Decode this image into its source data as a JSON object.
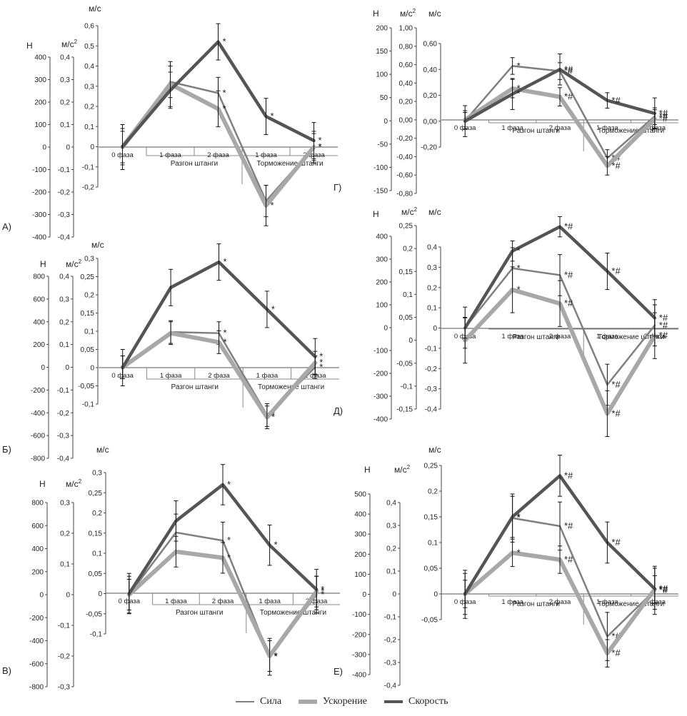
{
  "legend": [
    {
      "name": "Сила",
      "color": "#7f7f7f",
      "width": 2.5
    },
    {
      "name": "Ускорение",
      "color": "#a8a8a8",
      "width": 6
    },
    {
      "name": "Скорость",
      "color": "#555555",
      "width": 4.5
    }
  ],
  "chart_data": [
    {
      "type": "line",
      "label": "А)",
      "categories": [
        "0 фаза",
        "1 фаза",
        "2 фаза",
        "1 фаза",
        "2 фаза"
      ],
      "category_groups": [
        "Разгон штанги",
        "Торможение штанги"
      ],
      "axes": {
        "N": {
          "unit": "Н",
          "ticks": [
            "400",
            "300",
            "200",
            "100",
            "0",
            "-100",
            "-200",
            "-300",
            "-400"
          ]
        },
        "a": {
          "unit": "м/с2",
          "ticks": [
            "0,4",
            "0,3",
            "0,2",
            "0,1",
            "0",
            "-0,1",
            "-0,2",
            "-0,3",
            "-0,4"
          ]
        },
        "v": {
          "unit": "м/с",
          "ticks": [
            "0,6",
            "0,5",
            "0,4",
            "0,3",
            "0,2",
            "0,1",
            "0",
            "-0,1",
            "-0,2"
          ]
        }
      },
      "series": [
        {
          "name": "Сила",
          "axis": "N",
          "values": [
            0,
            290,
            240,
            -240,
            0
          ],
          "errors": [
            70,
            70,
            70,
            70,
            70
          ],
          "marks": [
            "",
            "",
            "*",
            "*",
            "*"
          ]
        },
        {
          "name": "Ускорение",
          "axis": "a",
          "values": [
            0,
            0.28,
            0.17,
            -0.26,
            0
          ],
          "errors": [
            0.1,
            0.1,
            0.08,
            0.09,
            0.06
          ],
          "marks": [
            "",
            "",
            "*",
            "*",
            "*"
          ]
        },
        {
          "name": "Скорость",
          "axis": "v",
          "values": [
            0,
            0.28,
            0.52,
            0.15,
            0.03
          ],
          "errors": [
            0.09,
            0.09,
            0.09,
            0.09,
            0.09
          ],
          "marks": [
            "",
            "",
            "*",
            "*",
            "*"
          ]
        }
      ]
    },
    {
      "type": "line",
      "label": "Б)",
      "categories": [
        "0 фаза",
        "1 фаза",
        "2 фаза",
        "1 фаза",
        "2 фаза"
      ],
      "category_groups": [
        "Разгон штанги",
        "Торможение штанги"
      ],
      "axes": {
        "N": {
          "unit": "Н",
          "ticks": [
            "800",
            "600",
            "400",
            "200",
            "0",
            "-200",
            "-400",
            "-600",
            "-800"
          ]
        },
        "a": {
          "unit": "м/с2",
          "ticks": [
            "0,4",
            "0,3",
            "0,2",
            "0,1",
            "0",
            "-0,1",
            "-0,2",
            "-0,3",
            "-0,4"
          ]
        },
        "v": {
          "unit": "м/с",
          "ticks": [
            "0,3",
            "0,25",
            "0,2",
            "0,15",
            "0,1",
            "0,05",
            "0",
            "-0,05",
            "-0,1"
          ]
        }
      },
      "series": [
        {
          "name": "Сила",
          "axis": "N",
          "values": [
            0,
            310,
            300,
            -420,
            0
          ],
          "errors": [
            100,
            100,
            100,
            100,
            100
          ],
          "marks": [
            "",
            "",
            "*",
            "*",
            "*"
          ]
        },
        {
          "name": "Ускорение",
          "axis": "a",
          "values": [
            0,
            0.15,
            0.11,
            -0.22,
            0.02
          ],
          "errors": [
            0.05,
            0.05,
            0.05,
            0.05,
            0.05
          ],
          "marks": [
            "",
            "",
            "*",
            "*",
            "*"
          ]
        },
        {
          "name": "Скорость",
          "axis": "v",
          "values": [
            0,
            0.22,
            0.29,
            0.16,
            0.03
          ],
          "errors": [
            0.05,
            0.05,
            0.05,
            0.05,
            0.05
          ],
          "marks": [
            "",
            "",
            "*",
            "*",
            "*"
          ]
        }
      ]
    },
    {
      "type": "line",
      "label": "В)",
      "categories": [
        "0 фаза",
        "1 фаза",
        "2 фаза",
        "1 фаза",
        "2 фаза"
      ],
      "category_groups": [
        "Разгон штанги",
        "Торможение штанги"
      ],
      "axes": {
        "N": {
          "unit": "Н",
          "ticks": [
            "800",
            "600",
            "400",
            "200",
            "0",
            "-200",
            "-400",
            "-600",
            "-800"
          ]
        },
        "a": {
          "unit": "м/с2",
          "ticks": [
            "0,3",
            "0,2",
            "0,1",
            "0",
            "-0,1",
            "-0,2",
            "-0,3"
          ]
        },
        "v": {
          "unit": "м/с",
          "ticks": [
            "0,3",
            "0,25",
            "0,2",
            "0,15",
            "0,1",
            "0,05",
            "0",
            "-0,05",
            "-0,1"
          ]
        }
      },
      "series": [
        {
          "name": "Сила",
          "axis": "N",
          "values": [
            0,
            540,
            470,
            -540,
            0
          ],
          "errors": [
            160,
            160,
            160,
            160,
            160
          ],
          "marks": [
            "",
            "",
            "*",
            "*",
            "*"
          ]
        },
        {
          "name": "Ускорение",
          "axis": "a",
          "values": [
            0,
            0.14,
            0.12,
            -0.2,
            0.01
          ],
          "errors": [
            0.05,
            0.05,
            0.05,
            0.05,
            0.05
          ],
          "marks": [
            "",
            "",
            "*",
            "*",
            "*"
          ]
        },
        {
          "name": "Скорость",
          "axis": "v",
          "values": [
            0,
            0.18,
            0.27,
            0.12,
            0.01
          ],
          "errors": [
            0.05,
            0.05,
            0.05,
            0.05,
            0.05
          ],
          "marks": [
            "",
            "",
            "*",
            "*",
            "*"
          ]
        }
      ]
    },
    {
      "type": "line",
      "label": "Г)",
      "categories": [
        "0 фаза",
        "1 фаза",
        "2 фаза",
        "1 фаза",
        "2 фаза"
      ],
      "category_groups": [
        "Разгон штанги",
        "Торможение штанги"
      ],
      "axes": {
        "N": {
          "unit": "Н",
          "ticks": [
            "200",
            "150",
            "100",
            "50",
            "0",
            "-50",
            "-100",
            "-150"
          ]
        },
        "a": {
          "unit": "м/с2",
          "ticks": [
            "1,00",
            "0,80",
            "0,60",
            "0,40",
            "0,20",
            "0,00",
            "-0,20",
            "-0,40",
            "-0,60",
            "-0,80"
          ]
        },
        "v": {
          "unit": "м/с",
          "ticks": [
            "0,60",
            "0,40",
            "0,20",
            "0,00",
            "-0,20"
          ]
        }
      },
      "series": [
        {
          "name": "Сила",
          "axis": "N",
          "values": [
            0,
            118,
            107,
            -80,
            10
          ],
          "errors": [
            18,
            18,
            18,
            18,
            18
          ],
          "marks": [
            "",
            "*",
            "*#",
            "*#",
            "*#"
          ]
        },
        {
          "name": "Ускорение",
          "axis": "a",
          "values": [
            0,
            0.34,
            0.25,
            -0.5,
            0.01
          ],
          "errors": [
            0.1,
            0.1,
            0.1,
            0.1,
            0.1
          ],
          "marks": [
            "",
            "*",
            "*#",
            "*#",
            "*#"
          ]
        },
        {
          "name": "Скорость",
          "axis": "v",
          "values": [
            0,
            0.21,
            0.4,
            0.16,
            0.06
          ],
          "errors": [
            0.12,
            0.12,
            0.12,
            0.06,
            0.12
          ],
          "marks": [
            "",
            "*",
            "*#",
            "*#",
            "*#"
          ]
        }
      ]
    },
    {
      "type": "line",
      "label": "Д)",
      "categories": [
        "0 фаза",
        "1 фаза",
        "2 фаза",
        "1 фаза",
        "2 фаза"
      ],
      "category_groups": [
        "Разгон штанги",
        "Торможение штанги"
      ],
      "axes": {
        "N": {
          "unit": "Н",
          "ticks": [
            "400",
            "300",
            "200",
            "100",
            "0",
            "-100",
            "-200",
            "-300",
            "-400"
          ]
        },
        "a": {
          "unit": "м/с2",
          "ticks": [
            "0,25",
            "0,2",
            "0,15",
            "0,1",
            "0,05",
            "0",
            "-0,05",
            "-0,1",
            "-0,15"
          ]
        },
        "v": {
          "unit": "м/с",
          "ticks": [
            "0,4",
            "0,3",
            "0,2",
            "0,1",
            "0",
            "-0,1",
            "-0,2",
            "-0,3",
            "-0,4"
          ]
        }
      },
      "series": [
        {
          "name": "Сила",
          "axis": "N",
          "values": [
            0,
            260,
            230,
            -250,
            10
          ],
          "errors": [
            90,
            90,
            90,
            90,
            90
          ],
          "marks": [
            "",
            "*",
            "*#",
            "*#",
            "*#"
          ]
        },
        {
          "name": "Ускорение",
          "axis": "a",
          "values": [
            0,
            0.11,
            0.08,
            -0.16,
            0.01
          ],
          "errors": [
            0.05,
            0.05,
            0.05,
            0.05,
            0.05
          ],
          "marks": [
            "",
            "*",
            "*#",
            "*#",
            "*#"
          ]
        },
        {
          "name": "Скорость",
          "axis": "v",
          "values": [
            0,
            0.38,
            0.5,
            0.28,
            0.05
          ],
          "errors": [
            0.05,
            0.05,
            0.05,
            0.09,
            0.09
          ],
          "marks": [
            "",
            "*",
            "*#",
            "*#",
            "*#"
          ]
        }
      ]
    },
    {
      "type": "line",
      "label": "Е)",
      "categories": [
        "0 фаза",
        "1 фаза",
        "2 фаза",
        "1 фаза",
        "2 фаза"
      ],
      "category_groups": [
        "Разгон штанги",
        "Торможение штанги"
      ],
      "axes": {
        "N": {
          "unit": "Н",
          "ticks": [
            "500",
            "400",
            "300",
            "200",
            "100",
            "0",
            "-100",
            "-200",
            "-300",
            "-400"
          ]
        },
        "a": {
          "unit": "м/с2",
          "ticks": [
            "0,4",
            "0,3",
            "0,2",
            "0,1",
            "0",
            "-0,1",
            "-0,2",
            "-0,3",
            "-0,4"
          ]
        },
        "v": {
          "unit": "м/с",
          "ticks": [
            "0,25",
            "0,2",
            "0,15",
            "0,1",
            "0,05",
            "0",
            "-0,05"
          ]
        }
      },
      "series": [
        {
          "name": "Сила",
          "axis": "N",
          "values": [
            0,
            380,
            340,
            -210,
            20
          ],
          "errors": [
            120,
            120,
            120,
            120,
            120
          ],
          "marks": [
            "",
            "*",
            "*#",
            "*#",
            "*#"
          ]
        },
        {
          "name": "Ускорение",
          "axis": "a",
          "values": [
            0,
            0.18,
            0.15,
            -0.26,
            0.02
          ],
          "errors": [
            0.06,
            0.06,
            0.06,
            0.06,
            0.06
          ],
          "marks": [
            "",
            "*",
            "*#",
            "*#",
            "*#"
          ]
        },
        {
          "name": "Скорость",
          "axis": "v",
          "values": [
            0,
            0.15,
            0.23,
            0.1,
            0.01
          ],
          "errors": [
            0.04,
            0.04,
            0.04,
            0.04,
            0.04
          ],
          "marks": [
            "",
            "*",
            "*#",
            "*#",
            "*#"
          ]
        }
      ]
    }
  ]
}
